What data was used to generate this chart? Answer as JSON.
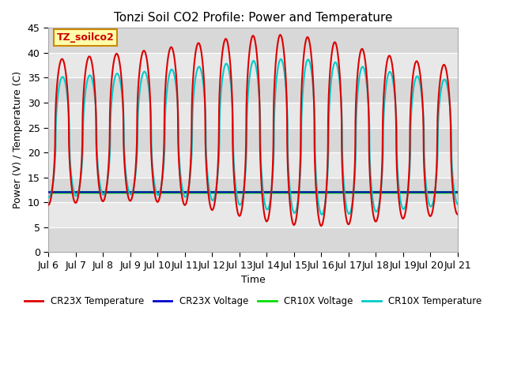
{
  "title": "Tonzi Soil CO2 Profile: Power and Temperature",
  "xlabel": "Time",
  "ylabel": "Power (V) / Temperature (C)",
  "ylim": [
    0,
    45
  ],
  "yticks": [
    0,
    5,
    10,
    15,
    20,
    25,
    30,
    35,
    40,
    45
  ],
  "x_tick_labels": [
    "Jul 6",
    "Jul 7",
    "Jul 8",
    "Jul 9",
    "Jul 10",
    "Jul 11",
    "Jul 12",
    "Jul 13",
    "Jul 14",
    "Jul 15",
    "Jul 16",
    "Jul 17",
    "Jul 18",
    "Jul 19",
    "Jul 20",
    "Jul 21"
  ],
  "cr23x_temp_color": "#dd0000",
  "cr23x_volt_color": "#0000cc",
  "cr10x_volt_color": "#00dd00",
  "cr10x_temp_color": "#00cccc",
  "plot_bg_color": "#e8e8e8",
  "grid_color": "#ffffff",
  "legend_items": [
    "CR23X Temperature",
    "CR23X Voltage",
    "CR10X Voltage",
    "CR10X Temperature"
  ],
  "annotation_text": "TZ_soilco2",
  "annotation_bg": "#ffffaa",
  "annotation_border": "#cc8800",
  "annotation_text_color": "#cc0000",
  "green_line_value": 12.0,
  "n_cycles": 15,
  "n_points": 3000
}
